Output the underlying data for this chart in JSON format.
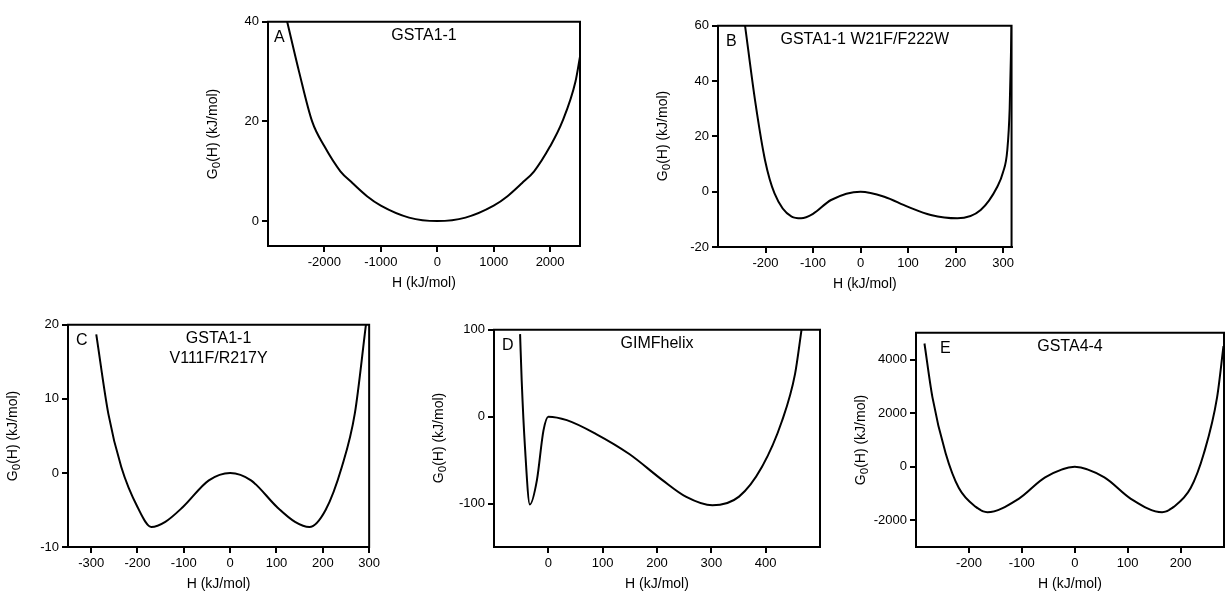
{
  "chart_data": [
    {
      "type": "line",
      "title": "GSTA1-1",
      "annotations": [
        "A"
      ],
      "xlabel": "H (kJ/mol)",
      "ylabel": "G$_{0}$(H) (kJ/mol)",
      "xlim": [
        -3000,
        2530
      ],
      "ylim": [
        -5,
        40
      ],
      "xticks": [
        -2000,
        -1000,
        0,
        1000,
        2000
      ],
      "yticks": [
        0,
        20,
        40
      ],
      "marker": "none",
      "series": [
        {
          "color": "#000000",
          "x": [
            -2660,
            -2450,
            -2218,
            -2000,
            -1717,
            -1500,
            -1245,
            -1000,
            -500,
            0,
            500,
            1000,
            1245,
            1500,
            1717,
            2000,
            2218,
            2450,
            2530
          ],
          "values": [
            40,
            30,
            20,
            15,
            10,
            7.6,
            5,
            3.1,
            0.7,
            0,
            0.7,
            3.1,
            5,
            7.6,
            10,
            15,
            20,
            28,
            33
          ]
        }
      ]
    },
    {
      "type": "line",
      "title": "GSTA1-1 W21F/F222W",
      "annotations": [
        "B"
      ],
      "xlabel": "H (kJ/mol)",
      "ylabel": "G$_{0}$(H) (kJ/mol)",
      "xlim": [
        -300,
        318
      ],
      "ylim": [
        -20,
        60
      ],
      "xticks": [
        -200,
        -100,
        0,
        100,
        200,
        300
      ],
      "yticks": [
        -20,
        0,
        20,
        40,
        60
      ],
      "marker": "none",
      "series": [
        {
          "color": "#000000",
          "x": [
            -243,
            -222,
            -201,
            -181,
            -145,
            -125,
            -100,
            -62,
            0,
            50,
            99,
            148,
            204,
            253,
            288,
            300,
            309,
            314,
            318
          ],
          "values": [
            60,
            33,
            11.4,
            -0.6,
            -9,
            -9.6,
            -8,
            -3,
            0,
            -1.8,
            -5.4,
            -8.4,
            -9.6,
            -6.6,
            1.8,
            7,
            15,
            30,
            60
          ]
        }
      ]
    },
    {
      "type": "line",
      "title": "GSTA1-1\nV111F/R217Y",
      "annotations": [
        "C"
      ],
      "xlabel": "H (kJ/mol)",
      "ylabel": "G$_{0}$(H) (kJ/mol)",
      "xlim": [
        -350,
        300
      ],
      "ylim": [
        -10,
        20
      ],
      "xticks": [
        -300,
        -200,
        -100,
        0,
        100,
        200,
        300
      ],
      "yticks": [
        -10,
        0,
        10,
        20
      ],
      "marker": "none",
      "series": [
        {
          "color": "#000000",
          "x": [
            -289,
            -263,
            -235,
            -200,
            -170,
            -140,
            -102,
            -46,
            0,
            45,
            101,
            140,
            171,
            206,
            241,
            269,
            293
          ],
          "values": [
            18.7,
            8,
            0.8,
            -4.6,
            -7.3,
            -6.6,
            -4.6,
            -1,
            0,
            -1,
            -4.6,
            -6.6,
            -7.3,
            -5,
            0.8,
            8,
            20
          ]
        }
      ]
    },
    {
      "type": "line",
      "title": "GIMFhelix",
      "annotations": [
        "D"
      ],
      "xlabel": "H (kJ/mol)",
      "ylabel": "G$_{0}$(H) (kJ/mol)",
      "xlim": [
        -100,
        500
      ],
      "ylim": [
        -150,
        100
      ],
      "xticks": [
        0,
        100,
        200,
        300,
        400
      ],
      "yticks": [
        -100,
        0,
        100
      ],
      "marker": "none",
      "series": [
        {
          "color": "#000000",
          "x": [
            -52,
            -49,
            -43,
            -34,
            -21,
            -9,
            0,
            34,
            88,
            149,
            210,
            253,
            302,
            351,
            393,
            430,
            454,
            466
          ],
          "values": [
            95,
            41,
            -35,
            -101,
            -73,
            -16,
            0,
            -4,
            -20,
            -43,
            -73,
            -92,
            -102,
            -92,
            -58,
            -5,
            49,
            100
          ]
        }
      ]
    },
    {
      "type": "line",
      "title": "GSTA4-4",
      "annotations": [
        "E"
      ],
      "xlabel": "H (kJ/mol)",
      "ylabel": "G$_{0}$(H) (kJ/mol)",
      "xlim": [
        -300,
        282
      ],
      "ylim": [
        -3000,
        5000
      ],
      "xticks": [
        -200,
        -100,
        0,
        100,
        200
      ],
      "yticks": [
        -2000,
        0,
        2000,
        4000
      ],
      "marker": "none",
      "series": [
        {
          "color": "#000000",
          "x": [
            -284,
            -269,
            -244,
            -219,
            -187,
            -165,
            -106,
            -56,
            0,
            56,
            106,
            165,
            187,
            219,
            244,
            269,
            281
          ],
          "values": [
            4600,
            2600,
            500,
            -800,
            -1500,
            -1700,
            -1200,
            -400,
            0,
            -400,
            -1200,
            -1700,
            -1500,
            -800,
            500,
            2600,
            4500
          ]
        }
      ]
    }
  ]
}
